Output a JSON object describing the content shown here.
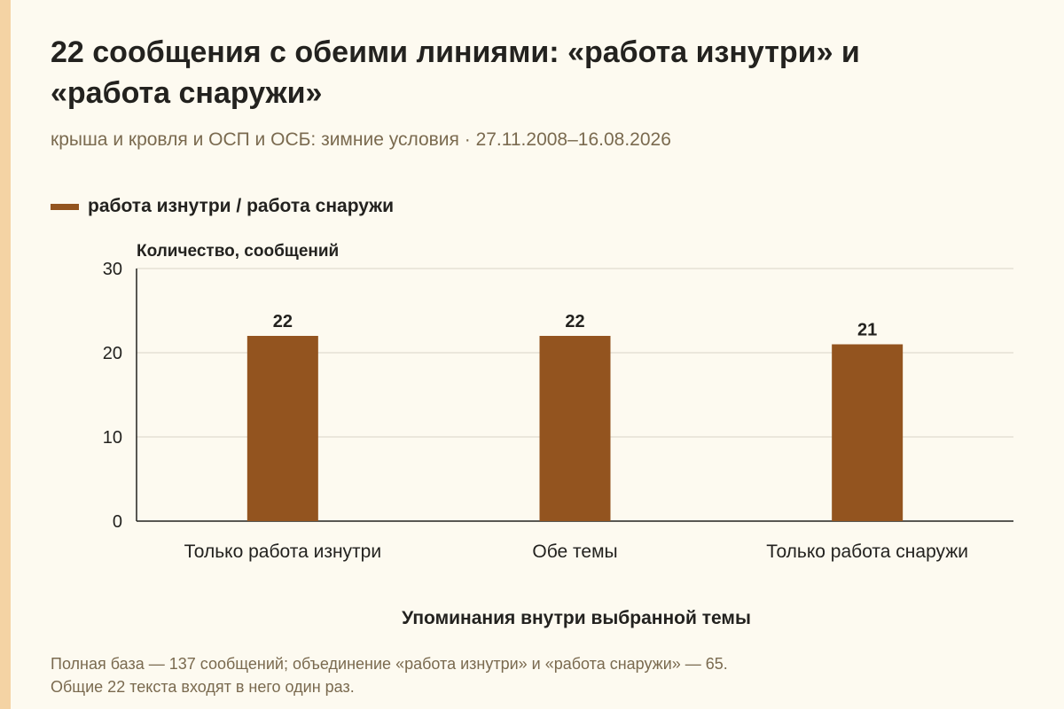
{
  "title": "22 сообщения с обеими линиями: «работа изнутри» и «работа снаружи»",
  "subtitle": "крыша и кровля и ОСП и ОСБ: зимние условия · 27.11.2008–16.08.2026",
  "footnote": {
    "line1": "Полная база — 137 сообщений; объединение «работа изнутри» и «работа снаружи» — 65.",
    "line2": "Общие 22 текста входят в него один раз."
  },
  "colors": {
    "bar": "#93541f",
    "accent_strip": "#f4d3a4",
    "background": "#fdfaf0"
  },
  "chart_data": {
    "type": "bar",
    "legend": [
      "работа изнутри / работа снаружи"
    ],
    "legend_position": "top-left",
    "categories": [
      "Только работа изнутри",
      "Обе темы",
      "Только работа снаружи"
    ],
    "series": [
      {
        "name": "работа изнутри / работа снаружи",
        "values": [
          22,
          22,
          21
        ]
      }
    ],
    "data_labels": [
      "22",
      "22",
      "21"
    ],
    "ylabel": "Количество, сообщений",
    "xlabel": "Упоминания внутри выбранной темы",
    "ylim": [
      0,
      30
    ],
    "yticks": [
      0,
      10,
      20,
      30
    ],
    "grid": "horizontal"
  }
}
